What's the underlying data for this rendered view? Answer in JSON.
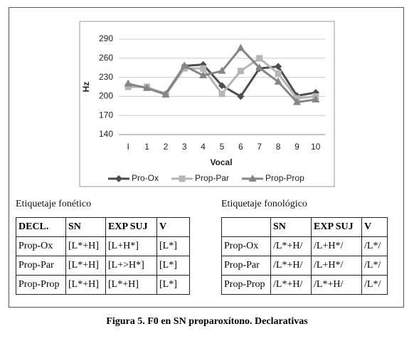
{
  "chart_data": {
    "type": "line",
    "y_label": "Hz",
    "x_label": "Vocal",
    "categories": [
      "I",
      "1",
      "2",
      "3",
      "4",
      "5",
      "6",
      "7",
      "8",
      "9",
      "10"
    ],
    "ylim": [
      140,
      290
    ],
    "yticks": [
      140,
      170,
      200,
      230,
      260,
      290
    ],
    "grid": true,
    "legend": "bottom",
    "series": [
      {
        "name": "Pro-Ox",
        "color": "#4d4d4d",
        "marker": "diamond",
        "values": [
          218,
          214,
          204,
          248,
          250,
          217,
          200,
          244,
          247,
          201,
          206
        ]
      },
      {
        "name": "Prop-Par",
        "color": "#b5b5b5",
        "marker": "square",
        "values": [
          215,
          215,
          203,
          244,
          244,
          204,
          240,
          260,
          236,
          197,
          200
        ]
      },
      {
        "name": "Prop-Prop",
        "color": "#858585",
        "marker": "triangle",
        "values": [
          220,
          213,
          203,
          248,
          233,
          240,
          276,
          245,
          223,
          191,
          195
        ]
      }
    ]
  },
  "tables": [
    {
      "title": "Etiquetaje fonético",
      "header": [
        "DECL.",
        "SN",
        "EXP SUJ",
        "V"
      ],
      "rows": [
        [
          "Prop-Ox",
          "[L*+H]",
          "[L+H*]",
          "[L*]"
        ],
        [
          "Prop-Par",
          "[L*+H]",
          "[L+>H*]",
          "[L*]"
        ],
        [
          "Prop-Prop",
          "[L*+H]",
          "[L*+H]",
          "[L*]"
        ]
      ]
    },
    {
      "title": "Etiquetaje fonológico",
      "header": [
        "SN",
        "EXP SUJ",
        "V"
      ],
      "rows": [
        [
          "Prop-Ox",
          "/L*+H/",
          "/L+H*/",
          "/L*/"
        ],
        [
          "Prop-Par",
          "/L*+H/",
          "/L+H*/",
          "/L*/"
        ],
        [
          "Prop-Prop",
          "/L*+H/",
          "/L*+H/",
          "/L*/"
        ]
      ]
    }
  ],
  "caption": "Figura 5. F0 en SN proparoxítono. Declarativas"
}
